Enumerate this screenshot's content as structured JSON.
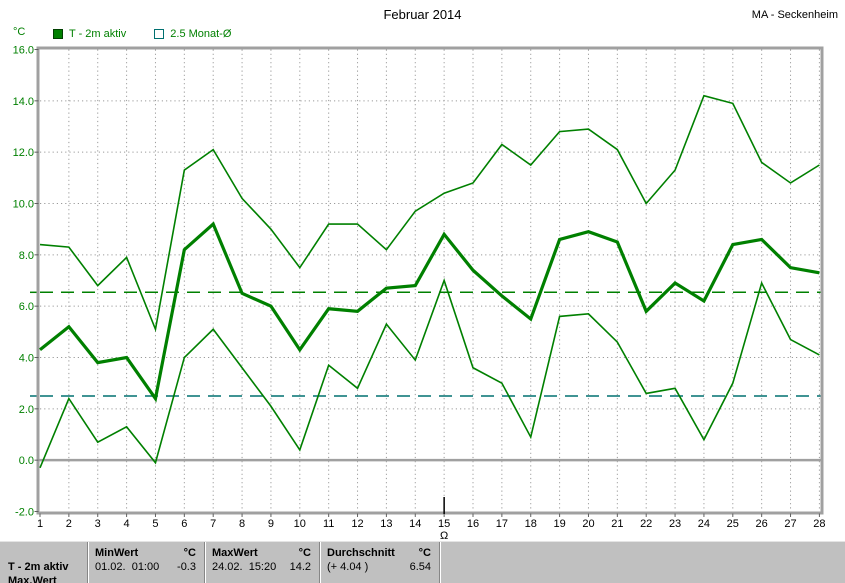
{
  "header": {
    "title": "Februar 2014",
    "station": "MA - Seckenheim"
  },
  "axis": {
    "unit": "°C"
  },
  "legend": {
    "items": [
      {
        "label": "T - 2m aktiv",
        "swatch": "filled-green-square"
      },
      {
        "label": "2.5 Monat-Ø",
        "swatch": "outline-square"
      }
    ]
  },
  "colors": {
    "line_green": "#008000",
    "reference_teal": "#007070",
    "grid": "#9a9a9a",
    "frame": "#a0a0a0",
    "table_bg": "#c0c0c0"
  },
  "chart_data": {
    "type": "line",
    "title": "Februar 2014",
    "xlabel": "",
    "ylabel": "°C",
    "ylim": [
      -2,
      16
    ],
    "ytick_step": 2,
    "grid": true,
    "days": [
      1,
      2,
      3,
      4,
      5,
      6,
      7,
      8,
      9,
      10,
      11,
      12,
      13,
      14,
      15,
      16,
      17,
      18,
      19,
      20,
      21,
      22,
      23,
      24,
      25,
      26,
      27,
      28
    ],
    "line_color": "#008000",
    "series": [
      {
        "name": "max",
        "thick": false,
        "values": [
          8.4,
          8.3,
          6.8,
          7.9,
          5.1,
          11.3,
          12.1,
          10.2,
          9.0,
          7.5,
          9.2,
          9.2,
          8.2,
          9.7,
          10.4,
          10.8,
          12.3,
          11.5,
          12.8,
          12.9,
          12.1,
          10.0,
          11.3,
          14.2,
          13.9,
          11.6,
          10.8,
          11.5
        ]
      },
      {
        "name": "avg",
        "thick": true,
        "values": [
          4.3,
          5.2,
          3.8,
          4.0,
          2.4,
          8.2,
          9.2,
          6.5,
          6.0,
          4.3,
          5.9,
          5.8,
          6.7,
          6.8,
          8.8,
          7.4,
          6.4,
          5.5,
          8.6,
          8.9,
          8.5,
          5.8,
          6.9,
          6.2,
          8.4,
          8.6,
          7.5,
          7.3
        ]
      },
      {
        "name": "min",
        "thick": false,
        "values": [
          -0.3,
          2.4,
          0.7,
          1.3,
          -0.1,
          4.0,
          5.1,
          3.6,
          2.1,
          0.4,
          3.7,
          2.8,
          5.3,
          3.9,
          7.0,
          3.6,
          3.0,
          0.9,
          5.6,
          5.7,
          4.6,
          2.6,
          2.8,
          0.8,
          3.0,
          6.9,
          4.7,
          4.1
        ]
      }
    ],
    "reference_lines": [
      {
        "label": "Durchschnitt",
        "value": 6.54,
        "color": "#008000"
      },
      {
        "label": "2.5 Monat-Ø",
        "value": 2.5,
        "color": "#007070"
      }
    ],
    "cursor": {
      "day": 15,
      "symbol": "Ω"
    }
  },
  "table": {
    "row_label": "T - 2m aktiv",
    "next_row_label_partial": "Max.Wert",
    "columns": [
      {
        "header": "MinWert",
        "unit": "°C",
        "text": "01.02.  01:00",
        "value": "-0.3"
      },
      {
        "header": "MaxWert",
        "unit": "°C",
        "text": "24.02.  15:20",
        "value": "14.2"
      },
      {
        "header": "Durchschnitt",
        "unit": "°C",
        "text": "(+ 4.04 )",
        "value": "6.54"
      }
    ]
  }
}
